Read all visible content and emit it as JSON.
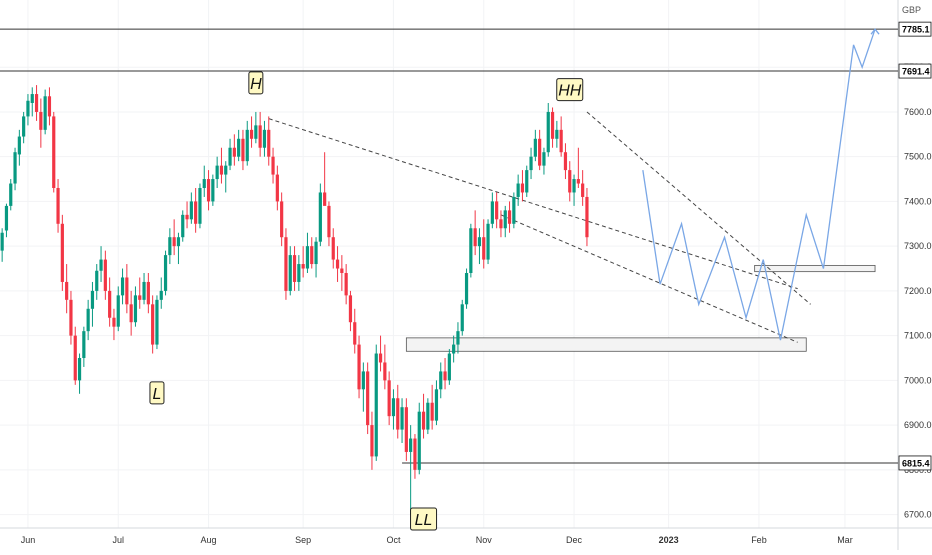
{
  "currency_label": "GBP",
  "chart_data": {
    "type": "candlestick",
    "y_ticks": [
      6700,
      6800,
      6900,
      7000,
      7100,
      7200,
      7300,
      7400,
      7500,
      7600,
      7700
    ],
    "y_tick_labels": [
      "6700.0",
      "6800.0",
      "6900.0",
      "7000.0",
      "7100.0",
      "7200.0",
      "7300.0",
      "7400.0",
      "7500.0",
      "7600.0",
      "7700.0"
    ],
    "ylim": [
      6670,
      7810
    ],
    "x_ticks": [
      {
        "label": "Jun",
        "bar": 6
      },
      {
        "label": "Jul",
        "bar": 27
      },
      {
        "label": "Aug",
        "bar": 48
      },
      {
        "label": "Sep",
        "bar": 70
      },
      {
        "label": "Oct",
        "bar": 91
      },
      {
        "label": "Nov",
        "bar": 112
      },
      {
        "label": "Dec",
        "bar": 133
      },
      {
        "label": "2023",
        "bar": 155
      },
      {
        "label": "Feb",
        "bar": 176
      },
      {
        "label": "Mar",
        "bar": 196
      }
    ],
    "horizontal_levels": [
      {
        "value": 7785.1,
        "label": "7785.1"
      },
      {
        "value": 7691.4,
        "label": "7691.4"
      },
      {
        "value": 6815.4,
        "label": "6815.4"
      }
    ],
    "annotations": [
      {
        "text": "H",
        "bar": 59,
        "value": 7665
      },
      {
        "text": "L",
        "bar": 36,
        "value": 6972
      },
      {
        "text": "HH",
        "bar": 132,
        "value": 7650
      },
      {
        "text": "LL",
        "bar": 98,
        "value": 6690
      }
    ],
    "trendlines": [
      {
        "from": {
          "bar": 62,
          "value": 7585
        },
        "to": {
          "bar": 185,
          "value": 7205
        },
        "style": "dashed"
      },
      {
        "from": {
          "bar": 116,
          "value": 7370
        },
        "to": {
          "bar": 185,
          "value": 7085
        },
        "style": "dashed"
      },
      {
        "from": {
          "bar": 136,
          "value": 7600
        },
        "to": {
          "bar": 188,
          "value": 7170
        },
        "style": "dashed"
      }
    ],
    "zones": [
      {
        "bar_from": 94,
        "bar_to": 187,
        "low": 7065,
        "high": 7095
      },
      {
        "bar_from": 175,
        "bar_to": 203,
        "low": 7243,
        "high": 7257
      }
    ],
    "projection": [
      {
        "bar": 149,
        "value": 7470
      },
      {
        "bar": 153,
        "value": 7215
      },
      {
        "bar": 158,
        "value": 7350
      },
      {
        "bar": 162,
        "value": 7170
      },
      {
        "bar": 168,
        "value": 7320
      },
      {
        "bar": 173,
        "value": 7140
      },
      {
        "bar": 177,
        "value": 7270
      },
      {
        "bar": 181,
        "value": 7090
      },
      {
        "bar": 187,
        "value": 7370
      },
      {
        "bar": 191,
        "value": 7250
      },
      {
        "bar": 198,
        "value": 7750
      },
      {
        "bar": 200,
        "value": 7700
      },
      {
        "bar": 203,
        "value": 7785
      }
    ],
    "candles": [
      [
        7290,
        7340,
        7265,
        7330
      ],
      [
        7335,
        7395,
        7320,
        7390
      ],
      [
        7390,
        7450,
        7380,
        7440
      ],
      [
        7440,
        7520,
        7425,
        7510
      ],
      [
        7505,
        7560,
        7480,
        7545
      ],
      [
        7545,
        7600,
        7530,
        7590
      ],
      [
        7590,
        7640,
        7570,
        7625
      ],
      [
        7620,
        7655,
        7590,
        7640
      ],
      [
        7640,
        7660,
        7580,
        7600
      ],
      [
        7600,
        7630,
        7520,
        7560
      ],
      [
        7560,
        7650,
        7550,
        7635
      ],
      [
        7635,
        7655,
        7570,
        7590
      ],
      [
        7590,
        7600,
        7420,
        7430
      ],
      [
        7430,
        7450,
        7330,
        7350
      ],
      [
        7350,
        7370,
        7200,
        7220
      ],
      [
        7220,
        7260,
        7150,
        7180
      ],
      [
        7180,
        7200,
        7080,
        7100
      ],
      [
        7100,
        7120,
        6990,
        7000
      ],
      [
        7000,
        7060,
        6970,
        7050
      ],
      [
        7050,
        7120,
        7030,
        7110
      ],
      [
        7110,
        7180,
        7090,
        7160
      ],
      [
        7160,
        7220,
        7120,
        7200
      ],
      [
        7200,
        7260,
        7180,
        7245
      ],
      [
        7245,
        7300,
        7220,
        7270
      ],
      [
        7270,
        7290,
        7180,
        7200
      ],
      [
        7200,
        7230,
        7120,
        7140
      ],
      [
        7140,
        7160,
        7090,
        7120
      ],
      [
        7120,
        7210,
        7110,
        7190
      ],
      [
        7190,
        7250,
        7170,
        7230
      ],
      [
        7230,
        7260,
        7150,
        7170
      ],
      [
        7170,
        7200,
        7100,
        7130
      ],
      [
        7130,
        7210,
        7120,
        7190
      ],
      [
        7190,
        7230,
        7160,
        7180
      ],
      [
        7180,
        7240,
        7170,
        7220
      ],
      [
        7220,
        7240,
        7150,
        7170
      ],
      [
        7170,
        7190,
        7060,
        7080
      ],
      [
        7080,
        7190,
        7070,
        7180
      ],
      [
        7180,
        7230,
        7160,
        7200
      ],
      [
        7200,
        7290,
        7190,
        7280
      ],
      [
        7280,
        7340,
        7260,
        7320
      ],
      [
        7320,
        7360,
        7280,
        7300
      ],
      [
        7300,
        7330,
        7260,
        7320
      ],
      [
        7320,
        7380,
        7310,
        7370
      ],
      [
        7370,
        7400,
        7340,
        7360
      ],
      [
        7360,
        7420,
        7350,
        7400
      ],
      [
        7400,
        7430,
        7330,
        7350
      ],
      [
        7350,
        7440,
        7340,
        7430
      ],
      [
        7430,
        7480,
        7410,
        7450
      ],
      [
        7450,
        7470,
        7380,
        7400
      ],
      [
        7400,
        7460,
        7390,
        7450
      ],
      [
        7450,
        7500,
        7430,
        7480
      ],
      [
        7480,
        7520,
        7440,
        7460
      ],
      [
        7460,
        7490,
        7420,
        7480
      ],
      [
        7480,
        7540,
        7470,
        7520
      ],
      [
        7520,
        7550,
        7480,
        7500
      ],
      [
        7500,
        7560,
        7490,
        7540
      ],
      [
        7540,
        7560,
        7470,
        7490
      ],
      [
        7490,
        7580,
        7480,
        7560
      ],
      [
        7560,
        7590,
        7520,
        7540
      ],
      [
        7540,
        7600,
        7530,
        7570
      ],
      [
        7570,
        7600,
        7500,
        7520
      ],
      [
        7520,
        7580,
        7500,
        7560
      ],
      [
        7560,
        7590,
        7480,
        7500
      ],
      [
        7500,
        7520,
        7440,
        7460
      ],
      [
        7460,
        7480,
        7380,
        7400
      ],
      [
        7400,
        7420,
        7300,
        7320
      ],
      [
        7320,
        7340,
        7180,
        7200
      ],
      [
        7200,
        7300,
        7190,
        7280
      ],
      [
        7280,
        7300,
        7200,
        7220
      ],
      [
        7220,
        7280,
        7200,
        7260
      ],
      [
        7260,
        7300,
        7230,
        7250
      ],
      [
        7250,
        7330,
        7240,
        7300
      ],
      [
        7300,
        7320,
        7250,
        7260
      ],
      [
        7260,
        7320,
        7230,
        7310
      ],
      [
        7310,
        7440,
        7300,
        7420
      ],
      [
        7420,
        7510,
        7400,
        7390
      ],
      [
        7390,
        7400,
        7300,
        7320
      ],
      [
        7320,
        7340,
        7250,
        7270
      ],
      [
        7270,
        7300,
        7220,
        7250
      ],
      [
        7250,
        7280,
        7200,
        7240
      ],
      [
        7240,
        7260,
        7170,
        7190
      ],
      [
        7190,
        7200,
        7110,
        7130
      ],
      [
        7130,
        7160,
        7060,
        7080
      ],
      [
        7080,
        7100,
        6960,
        6980
      ],
      [
        6980,
        7040,
        6930,
        7020
      ],
      [
        7020,
        7040,
        6880,
        6900
      ],
      [
        6900,
        6930,
        6800,
        6830
      ],
      [
        6830,
        7080,
        6820,
        7060
      ],
      [
        7060,
        7100,
        7020,
        7040
      ],
      [
        7040,
        7080,
        6980,
        7000
      ],
      [
        7000,
        7020,
        6900,
        6920
      ],
      [
        6920,
        6980,
        6890,
        6960
      ],
      [
        6960,
        6990,
        6870,
        6890
      ],
      [
        6890,
        6960,
        6860,
        6940
      ],
      [
        6940,
        6960,
        6820,
        6840
      ],
      [
        6840,
        6900,
        6700,
        6870
      ],
      [
        6870,
        6880,
        6780,
        6800
      ],
      [
        6800,
        6950,
        6790,
        6930
      ],
      [
        6930,
        6970,
        6870,
        6890
      ],
      [
        6890,
        6960,
        6880,
        6950
      ],
      [
        6950,
        6990,
        6890,
        6910
      ],
      [
        6910,
        7000,
        6900,
        6980
      ],
      [
        6980,
        7040,
        6960,
        7020
      ],
      [
        7020,
        7050,
        6980,
        7000
      ],
      [
        7000,
        7070,
        6990,
        7060
      ],
      [
        7060,
        7100,
        7040,
        7080
      ],
      [
        7080,
        7130,
        7060,
        7110
      ],
      [
        7110,
        7180,
        7100,
        7170
      ],
      [
        7170,
        7250,
        7160,
        7240
      ],
      [
        7240,
        7350,
        7230,
        7340
      ],
      [
        7340,
        7380,
        7280,
        7300
      ],
      [
        7300,
        7340,
        7260,
        7320
      ],
      [
        7320,
        7360,
        7250,
        7270
      ],
      [
        7270,
        7360,
        7260,
        7350
      ],
      [
        7350,
        7420,
        7340,
        7400
      ],
      [
        7400,
        7420,
        7340,
        7360
      ],
      [
        7360,
        7380,
        7320,
        7340
      ],
      [
        7340,
        7390,
        7320,
        7380
      ],
      [
        7380,
        7400,
        7330,
        7350
      ],
      [
        7350,
        7420,
        7340,
        7410
      ],
      [
        7410,
        7460,
        7390,
        7440
      ],
      [
        7440,
        7470,
        7400,
        7420
      ],
      [
        7420,
        7480,
        7410,
        7470
      ],
      [
        7470,
        7520,
        7450,
        7500
      ],
      [
        7500,
        7560,
        7490,
        7540
      ],
      [
        7540,
        7560,
        7470,
        7480
      ],
      [
        7480,
        7520,
        7460,
        7510
      ],
      [
        7510,
        7620,
        7500,
        7600
      ],
      [
        7600,
        7610,
        7520,
        7540
      ],
      [
        7540,
        7580,
        7520,
        7560
      ],
      [
        7560,
        7590,
        7500,
        7510
      ],
      [
        7510,
        7530,
        7450,
        7470
      ],
      [
        7470,
        7490,
        7400,
        7420
      ],
      [
        7420,
        7460,
        7390,
        7450
      ],
      [
        7450,
        7520,
        7430,
        7440
      ],
      [
        7440,
        7470,
        7390,
        7410
      ],
      [
        7410,
        7430,
        7300,
        7320
      ]
    ]
  }
}
